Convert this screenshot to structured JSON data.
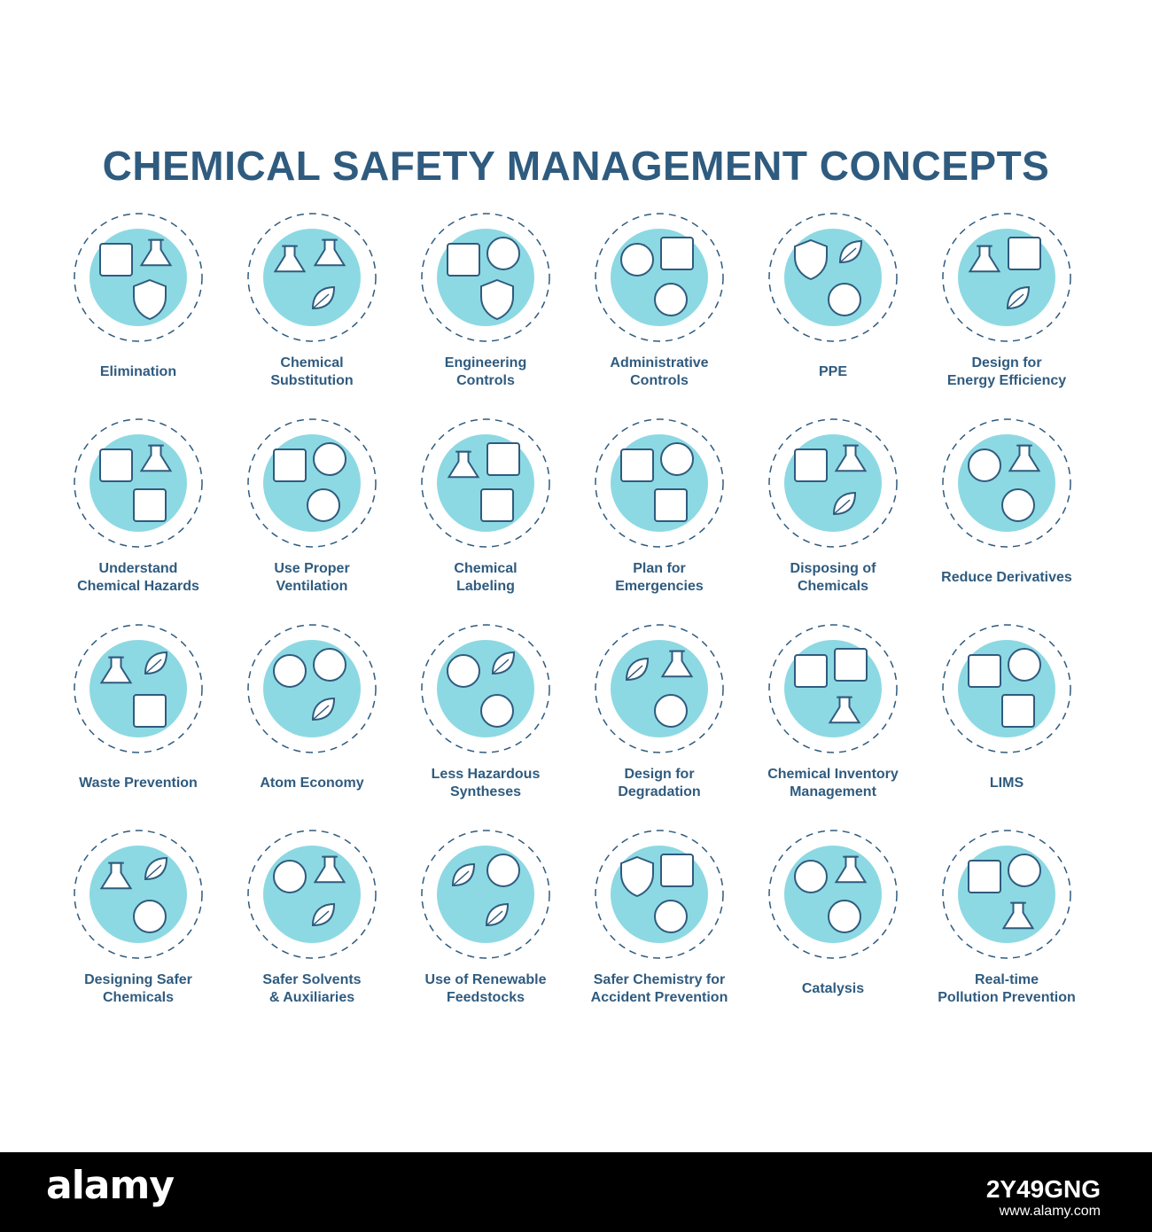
{
  "title": "CHEMICAL SAFETY MANAGEMENT CONCEPTS",
  "colors": {
    "accent": "#8dd9e3",
    "stroke": "#2f5b7f",
    "title": "#2f5b7f"
  },
  "items": [
    {
      "label": "Elimination",
      "icon": "biohazard-bin-icon"
    },
    {
      "label": "Chemical\nSubstitution",
      "icon": "flask-swap-icon"
    },
    {
      "label": "Engineering\nControls",
      "icon": "fan-respirator-icon"
    },
    {
      "label": "Administrative\nControls",
      "icon": "team-clock-icon"
    },
    {
      "label": "PPE",
      "icon": "mask-gloves-icon"
    },
    {
      "label": "Design for\nEnergy Efficiency",
      "icon": "solar-energy-icon"
    },
    {
      "label": "Understand\nChemical Hazards",
      "icon": "hazard-document-icon"
    },
    {
      "label": "Use Proper\nVentilation",
      "icon": "ventilation-fan-icon"
    },
    {
      "label": "Chemical\nLabeling",
      "icon": "flammable-label-icon"
    },
    {
      "label": "Plan for\nEmergencies",
      "icon": "exit-plan-icon"
    },
    {
      "label": "Disposing of\nChemicals",
      "icon": "recycle-disposal-icon"
    },
    {
      "label": "Reduce Derivatives",
      "icon": "molecule-gauge-icon"
    },
    {
      "label": "Waste Prevention",
      "icon": "waste-recycle-icon"
    },
    {
      "label": "Atom Economy",
      "icon": "atom-scale-icon"
    },
    {
      "label": "Less Hazardous\nSyntheses",
      "icon": "goggles-leaf-icon"
    },
    {
      "label": "Design for\nDegradation",
      "icon": "leaf-molecule-icon"
    },
    {
      "label": "Chemical Inventory\nManagement",
      "icon": "inventory-computer-icon"
    },
    {
      "label": "LIMS",
      "icon": "laptop-chart-icon"
    },
    {
      "label": "Designing Safer\nChemicals",
      "icon": "safer-flask-icon"
    },
    {
      "label": "Safer Solvents\n& Auxiliaries",
      "icon": "solvent-drop-icon"
    },
    {
      "label": "Use of Renewable\nFeedstocks",
      "icon": "renewable-leaf-icon"
    },
    {
      "label": "Safer Chemistry for\nAccident Prevention",
      "icon": "shield-firstaid-icon"
    },
    {
      "label": "Catalysis",
      "icon": "catalysis-gear-icon"
    },
    {
      "label": "Real-time\nPollution Prevention",
      "icon": "gauge-monitor-icon"
    }
  ],
  "footer": {
    "brand": "alamy",
    "image_id": "2Y49GNG",
    "url": "www.alamy.com"
  }
}
